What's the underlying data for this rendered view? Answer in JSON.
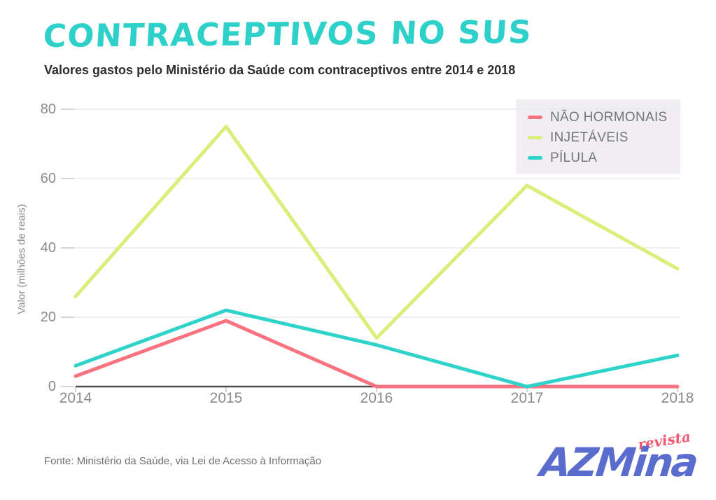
{
  "chart_data": {
    "type": "line",
    "title": "CONTRACEPTIVOS NO SUS",
    "subtitle": "Valores gastos pelo Ministério da Saúde com contraceptivos entre 2014 e 2018",
    "categories": [
      2014,
      2015,
      2016,
      2017,
      2018
    ],
    "series": [
      {
        "name": "NÃO HORMONAIS",
        "color": "#f8727f",
        "values": [
          3,
          19,
          0,
          0,
          0
        ]
      },
      {
        "name": "INJETÁVEIS",
        "color": "#dcee7a",
        "values": [
          26,
          75,
          14,
          58,
          34
        ]
      },
      {
        "name": "PÍLULA",
        "color": "#2fd3ca",
        "values": [
          6,
          22,
          12,
          0,
          9
        ]
      }
    ],
    "xlabel": "",
    "ylabel": "Valor (milhões de reais)",
    "ylim": [
      0,
      80
    ],
    "yticks": [
      0,
      20,
      40,
      60,
      80
    ],
    "grid": true,
    "legend_position": "top-right",
    "units": "milhões de reais"
  },
  "footer": {
    "source": "Fonte: Ministério da Saúde, via Lei de Acesso à Informação",
    "logo": {
      "wordmark": "AZMina",
      "tagline": "revista"
    }
  },
  "colors": {
    "title_accent": "#2ed1c9",
    "nao_hormonais": "#f8727f",
    "injetaveis": "#dcee7a",
    "pilula": "#2fd3ca",
    "grid": "#e9e9e9",
    "axis": "#4e4e4e",
    "legend_background": "#f0eef3",
    "logo_blue": "#5a6ccd",
    "logo_pink": "#f2586e"
  }
}
